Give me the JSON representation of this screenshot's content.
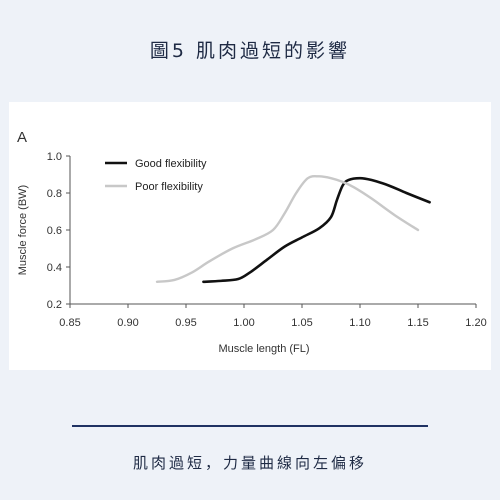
{
  "heading": "圖5 肌肉過短的影響",
  "caption": "肌肉過短，力量曲線向左偏移",
  "colors": {
    "background": "#eef2f8",
    "accent": "#1f3263",
    "good_line": "#111111",
    "poor_line": "#c8c8c8"
  },
  "chart_data": {
    "type": "line",
    "panel_label": "A",
    "xlabel": "Muscle length (FL)",
    "ylabel": "Muscle force (BW)",
    "xlim": [
      0.85,
      1.2
    ],
    "ylim": [
      0.2,
      1.0
    ],
    "xticks": [
      "0.85",
      "0.90",
      "0.95",
      "1.00",
      "1.05",
      "1.10",
      "1.15",
      "1.20"
    ],
    "yticks": [
      "0.2",
      "0.4",
      "0.6",
      "0.8",
      "1.0"
    ],
    "legend_position": "top-left",
    "series": [
      {
        "name": "Good flexibility",
        "color": "#111111",
        "x": [
          0.965,
          0.98,
          0.995,
          1.005,
          1.02,
          1.035,
          1.05,
          1.065,
          1.075,
          1.08,
          1.085,
          1.09,
          1.1,
          1.11,
          1.125,
          1.14,
          1.16
        ],
        "y": [
          0.32,
          0.325,
          0.335,
          0.37,
          0.44,
          0.51,
          0.56,
          0.61,
          0.67,
          0.76,
          0.84,
          0.87,
          0.88,
          0.87,
          0.84,
          0.8,
          0.75
        ]
      },
      {
        "name": "Poor flexibility",
        "color": "#c8c8c8",
        "x": [
          0.925,
          0.94,
          0.955,
          0.97,
          0.99,
          1.01,
          1.025,
          1.035,
          1.045,
          1.055,
          1.065,
          1.075,
          1.085,
          1.095,
          1.11,
          1.13,
          1.15
        ],
        "y": [
          0.32,
          0.33,
          0.37,
          0.43,
          0.5,
          0.55,
          0.6,
          0.69,
          0.8,
          0.88,
          0.89,
          0.88,
          0.86,
          0.83,
          0.77,
          0.68,
          0.6
        ]
      }
    ]
  }
}
